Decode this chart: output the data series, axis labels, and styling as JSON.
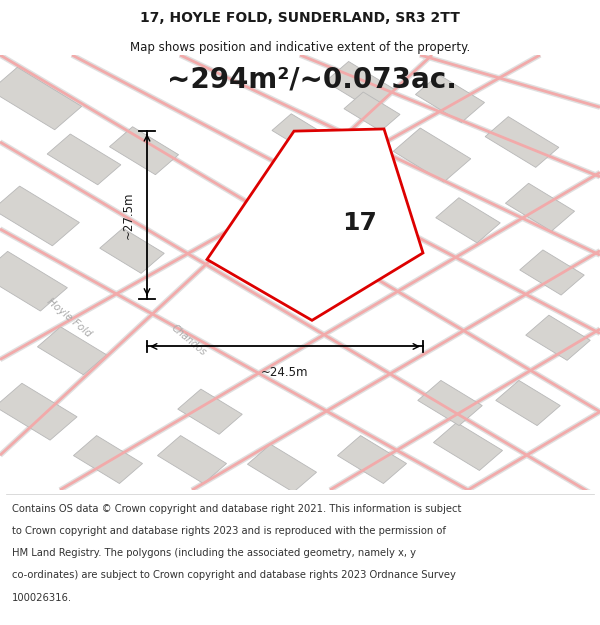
{
  "title_line1": "17, HOYLE FOLD, SUNDERLAND, SR3 2TT",
  "title_line2": "Map shows position and indicative extent of the property.",
  "area_text": "~294m²/~0.073ac.",
  "property_number": "17",
  "dim_vertical": "~27.5m",
  "dim_horizontal": "~24.5m",
  "footer_lines": [
    "Contains OS data © Crown copyright and database right 2021. This information is subject",
    "to Crown copyright and database rights 2023 and is reproduced with the permission of",
    "HM Land Registry. The polygons (including the associated geometry, namely x, y",
    "co-ordinates) are subject to Crown copyright and database rights 2023 Ordnance Survey",
    "100026316."
  ],
  "map_bg": "#eeece8",
  "road_color": "#f2aaaa",
  "road_outline": "#e0e0e0",
  "building_fill": "#d6d4d0",
  "building_edge": "#bbbbbb",
  "prop_fill": "#ffffff",
  "prop_edge": "#dd0000",
  "title_fontsize": 10,
  "subtitle_fontsize": 8.5,
  "area_fontsize": 20,
  "number_fontsize": 18,
  "dim_fontsize": 8.5,
  "footer_fontsize": 7.2,
  "road_label_color": "#aaaaaa",
  "road_label_size": 7.5
}
